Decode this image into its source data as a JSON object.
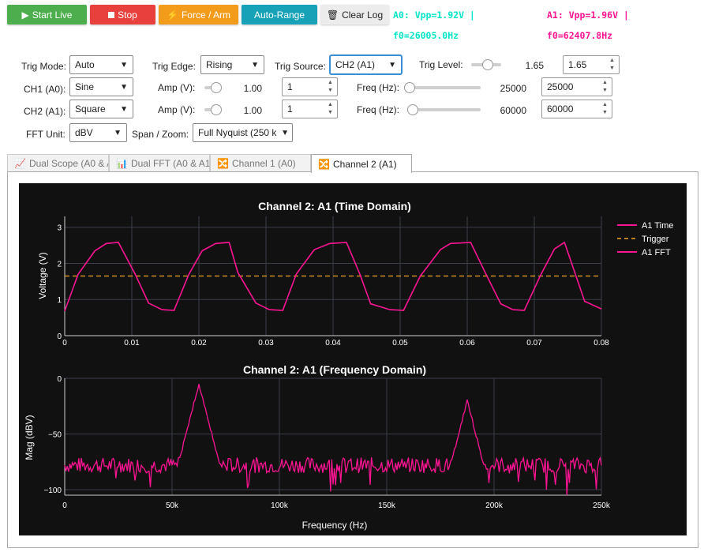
{
  "toolbar": {
    "start_label": "Start Live",
    "stop_label": "Stop",
    "force_label": "Force / Arm",
    "autorange_label": "Auto-Range",
    "clear_label": "Clear Log",
    "colors": {
      "start": "#4cae4c",
      "stop": "#e8403c",
      "force": "#f39c1c",
      "autorange": "#17a2b8",
      "clear": "#ececec"
    }
  },
  "status": {
    "a0_line1": "A0: Vpp=1.92V |",
    "a0_line2": "f0=26005.0Hz",
    "a1_line1": "A1: Vpp=1.96V |",
    "a1_line2": "f0=62407.8Hz",
    "a0_color": "#00e5c8",
    "a1_color": "#ff1493"
  },
  "controls": {
    "trig_mode_label": "Trig Mode:",
    "trig_mode_value": "Auto",
    "trig_edge_label": "Trig Edge:",
    "trig_edge_value": "Rising",
    "trig_source_label": "Trig Source:",
    "trig_source_value": "CH2 (A1)",
    "trig_level_label": "Trig Level:",
    "trig_level_display": "1.65",
    "trig_level_input": "1.65",
    "ch1_label": "CH1 (A0):",
    "ch1_wave": "Sine",
    "ch1_amp_label": "Amp (V):",
    "ch1_amp_display": "1.00",
    "ch1_amp_input": "1",
    "ch1_freq_label": "Freq (Hz):",
    "ch1_freq_display": "25000",
    "ch1_freq_input": "25000",
    "ch2_label": "CH2 (A1):",
    "ch2_wave": "Square",
    "ch2_amp_label": "Amp (V):",
    "ch2_amp_display": "1.00",
    "ch2_amp_input": "1",
    "ch2_freq_label": "Freq (Hz):",
    "ch2_freq_display": "60000",
    "ch2_freq_input": "60000",
    "fft_unit_label": "FFT Unit:",
    "fft_unit_value": "dBV",
    "span_label": "Span / Zoom:",
    "span_value": "Full Nyquist (250 kHz)"
  },
  "tabs": [
    {
      "icon": "📈",
      "label": "Dual Scope (A0 & A1)"
    },
    {
      "icon": "📊",
      "label": "Dual FFT (A0 & A1)"
    },
    {
      "icon": "🔀",
      "label": "Channel 1 (A0)"
    },
    {
      "icon": "🔀",
      "label": "Channel 2 (A1)"
    }
  ],
  "chart_data": [
    {
      "type": "line",
      "title": "Channel 2: A1 (Time Domain)",
      "xlabel": "",
      "ylabel": "Voltage (V)",
      "xlim": [
        0,
        0.08
      ],
      "ylim": [
        0,
        3.3
      ],
      "x_ticks": [
        "0",
        "0.01",
        "0.02",
        "0.03",
        "0.04",
        "0.05",
        "0.06",
        "0.07",
        "0.08"
      ],
      "y_ticks": [
        "0",
        "1",
        "2",
        "3"
      ],
      "grid": true,
      "legend_position": "right",
      "series": [
        {
          "name": "A1 Time",
          "color": "#ff1493",
          "x": [
            0,
            0.002,
            0.0045,
            0.0062,
            0.008,
            0.0105,
            0.0125,
            0.0145,
            0.0163,
            0.0185,
            0.0205,
            0.0225,
            0.0245,
            0.0258,
            0.0285,
            0.0305,
            0.0325,
            0.0345,
            0.0372,
            0.0395,
            0.042,
            0.044,
            0.0456,
            0.0485,
            0.0505,
            0.053,
            0.056,
            0.0575,
            0.0605,
            0.0628,
            0.065,
            0.0668,
            0.0685,
            0.071,
            0.073,
            0.0745,
            0.0775,
            0.08
          ],
          "y": [
            0.68,
            1.7,
            2.35,
            2.55,
            2.58,
            1.7,
            0.9,
            0.72,
            0.7,
            1.7,
            2.35,
            2.55,
            2.58,
            1.75,
            0.9,
            0.72,
            0.7,
            1.7,
            2.38,
            2.55,
            2.58,
            1.7,
            0.88,
            0.72,
            0.7,
            1.65,
            2.38,
            2.55,
            2.58,
            1.7,
            0.88,
            0.72,
            0.7,
            1.7,
            2.4,
            2.58,
            0.95,
            0.74
          ]
        },
        {
          "name": "Trigger",
          "color": "#f5a623",
          "dashed": true,
          "x": [
            0,
            0.08
          ],
          "y": [
            1.65,
            1.65
          ]
        },
        {
          "name": "A1 FFT",
          "color": "#ff1493"
        }
      ]
    },
    {
      "type": "line",
      "title": "Channel 2: A1 (Frequency Domain)",
      "xlabel": "Frequency (Hz)",
      "ylabel": "Mag (dBV)",
      "xlim": [
        0,
        250000
      ],
      "ylim": [
        -105,
        0
      ],
      "x_ticks": [
        "0",
        "50k",
        "100k",
        "150k",
        "200k",
        "250k"
      ],
      "y_ticks": [
        "0",
        "−50",
        "−100"
      ],
      "grid": true,
      "series": [
        {
          "name": "A1 FFT",
          "color": "#ff1493",
          "noise_floor_dbv": -78,
          "peaks": [
            {
              "x": 62500,
              "y": -5
            },
            {
              "x": 187500,
              "y": -20
            }
          ]
        }
      ]
    }
  ]
}
